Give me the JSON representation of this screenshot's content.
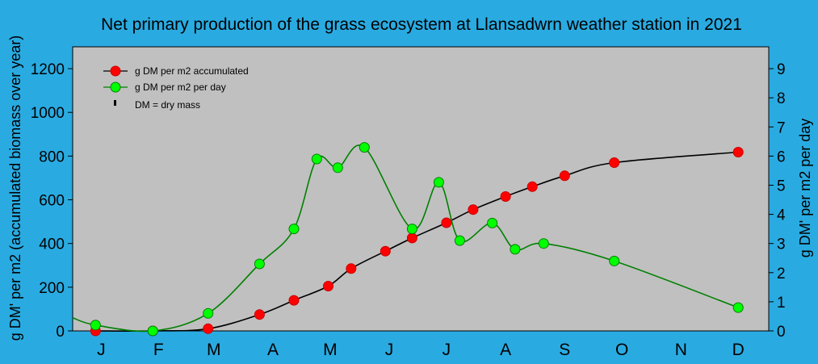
{
  "chart_data": {
    "type": "line",
    "title": "Net primary production of the grass ecosystem at Llansadwrn weather station in 2021",
    "ylabel_left": "g DM' per m2 (accumulated biomass over year)",
    "ylabel_right": "g DM' per m2 per day",
    "ylim_left": [
      0,
      1300
    ],
    "ylim_right": [
      0,
      9.75
    ],
    "yticks_left": [
      0,
      200,
      400,
      600,
      800,
      1000,
      1200
    ],
    "yticks_right": [
      0,
      1,
      2,
      3,
      4,
      5,
      6,
      7,
      8,
      9
    ],
    "xlim": [
      0,
      365
    ],
    "months": [
      {
        "label": "J",
        "pos": 15
      },
      {
        "label": "F",
        "pos": 45
      },
      {
        "label": "M",
        "pos": 74
      },
      {
        "label": "A",
        "pos": 105
      },
      {
        "label": "M",
        "pos": 135
      },
      {
        "label": "J",
        "pos": 166
      },
      {
        "label": "J",
        "pos": 196
      },
      {
        "label": "A",
        "pos": 227
      },
      {
        "label": "S",
        "pos": 258
      },
      {
        "label": "O",
        "pos": 288
      },
      {
        "label": "N",
        "pos": 319
      },
      {
        "label": "D",
        "pos": 349
      }
    ],
    "legend": [
      {
        "label": "g DM per m2 accumulated",
        "marker": "red"
      },
      {
        "label": "g DM per m2 per day",
        "marker": "green"
      },
      {
        "label": "DM = dry mass",
        "marker": "none"
      }
    ],
    "series": [
      {
        "name": "g DM per m2 accumulated",
        "axis": "left",
        "color": "#000000",
        "marker_color": "#ff0000",
        "x": [
          12,
          42,
          71,
          98,
          116,
          134,
          146,
          164,
          178,
          196,
          210,
          227,
          241,
          258,
          284,
          349
        ],
        "values": [
          0,
          0,
          10,
          75,
          140,
          205,
          285,
          365,
          425,
          495,
          555,
          615,
          660,
          710,
          770,
          818
        ]
      },
      {
        "name": "g DM per m2 per day",
        "axis": "right",
        "color": "#008000",
        "marker_color": "#00ff00",
        "x": [
          12,
          42,
          71,
          98,
          116,
          128,
          139,
          153,
          178,
          192,
          203,
          220,
          232,
          247,
          284,
          349
        ],
        "values": [
          0.2,
          0,
          0.6,
          2.3,
          3.5,
          5.9,
          5.6,
          6.3,
          3.5,
          5.1,
          3.1,
          3.7,
          2.8,
          3.0,
          2.4,
          0.8
        ]
      }
    ]
  }
}
